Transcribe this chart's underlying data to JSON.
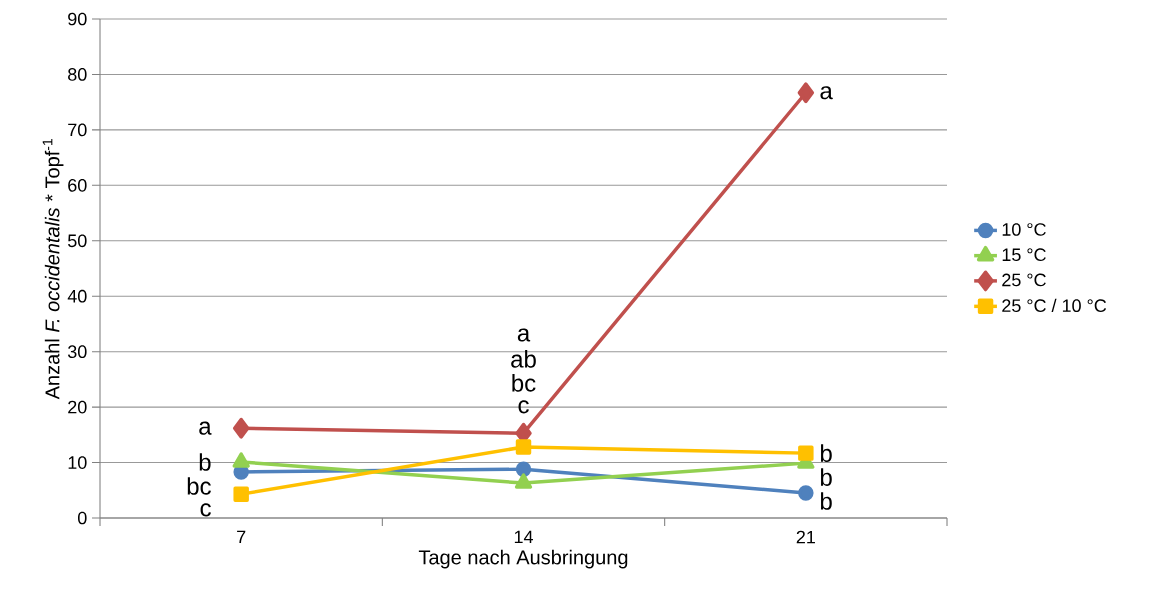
{
  "chart_data": {
    "type": "line",
    "xlabel": "Tage nach Ausbringung",
    "ylabel": "Anzahl *F. occidentalis* * Topf$^{-1}$",
    "categories": [
      "7",
      "14",
      "21"
    ],
    "ylim": [
      0,
      90
    ],
    "yticks": [
      0,
      10,
      20,
      30,
      40,
      50,
      60,
      70,
      80,
      90
    ],
    "grid": "y",
    "legend": "right",
    "series": [
      {
        "name": "10 °C",
        "color": "#4f81bd",
        "marker": "circle",
        "values": [
          8.3,
          8.8,
          4.5
        ]
      },
      {
        "name": "15 °C",
        "color": "#92d050",
        "marker": "triangle",
        "values": [
          10.1,
          6.3,
          9.9
        ]
      },
      {
        "name": "25 °C",
        "color": "#c0504d",
        "marker": "diamond",
        "values": [
          16.2,
          15.3,
          76.7
        ]
      },
      {
        "name": "25 °C / 10 °C",
        "color": "#ffc000",
        "marker": "square",
        "values": [
          4.3,
          12.8,
          11.7
        ]
      }
    ],
    "annotations": [
      {
        "text": "a",
        "x": "7",
        "y": 16.2
      },
      {
        "text": "b",
        "x": "7",
        "y": 10.1
      },
      {
        "text": "bc",
        "x": "7",
        "y": 8.3
      },
      {
        "text": "c",
        "x": "7",
        "y": 4.3
      },
      "a",
      "ab",
      "bc",
      "c",
      {
        "text": "a",
        "x": "21",
        "y": 76.7
      },
      {
        "text": "b",
        "x": "21",
        "y": 11.7
      },
      {
        "text": "b",
        "x": "21",
        "y": 9.9
      },
      {
        "text": "b",
        "x": "21",
        "y": 4.5
      }
    ]
  }
}
